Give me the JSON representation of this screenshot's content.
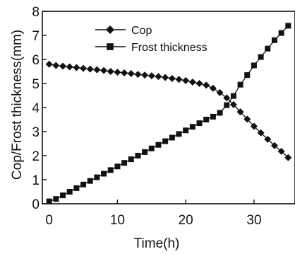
{
  "chart_data": {
    "type": "line",
    "title": "",
    "xlabel": "Time(h)",
    "ylabel": "Cop/Frost thickness(mm)",
    "xlim": [
      -1,
      36
    ],
    "ylim": [
      0,
      8
    ],
    "xticks": [
      0,
      10,
      20,
      30
    ],
    "xtick_labels": [
      "0",
      "10",
      "20",
      "30"
    ],
    "yticks": [
      0,
      1,
      2,
      3,
      4,
      5,
      6,
      7,
      8
    ],
    "ytick_labels": [
      "0",
      "1",
      "2",
      "3",
      "4",
      "5",
      "6",
      "7",
      "8"
    ],
    "grid": false,
    "legend_position": "top-center",
    "series": [
      {
        "name": "Cop",
        "marker": "diamond",
        "x": [
          0,
          1,
          2,
          3,
          4,
          5,
          6,
          7,
          8,
          9,
          10,
          11,
          12,
          13,
          14,
          15,
          16,
          17,
          18,
          19,
          20,
          21,
          22,
          23,
          24,
          25,
          26,
          27,
          28,
          29,
          30,
          31,
          32,
          33,
          34,
          35
        ],
        "y": [
          5.8,
          5.75,
          5.72,
          5.69,
          5.66,
          5.63,
          5.6,
          5.57,
          5.54,
          5.5,
          5.47,
          5.44,
          5.41,
          5.38,
          5.35,
          5.32,
          5.29,
          5.25,
          5.21,
          5.17,
          5.12,
          5.06,
          5.0,
          4.93,
          4.8,
          4.62,
          4.4,
          4.12,
          3.82,
          3.52,
          3.22,
          2.95,
          2.68,
          2.42,
          2.18,
          1.92
        ]
      },
      {
        "name": "Frost thickness",
        "marker": "square",
        "x": [
          0,
          1,
          2,
          3,
          4,
          5,
          6,
          7,
          8,
          9,
          10,
          11,
          12,
          13,
          14,
          15,
          16,
          17,
          18,
          19,
          20,
          21,
          22,
          23,
          24,
          25,
          26,
          27,
          28,
          29,
          30,
          31,
          32,
          33,
          34,
          35
        ],
        "y": [
          0.1,
          0.2,
          0.35,
          0.5,
          0.65,
          0.8,
          0.95,
          1.1,
          1.25,
          1.4,
          1.55,
          1.7,
          1.85,
          2.0,
          2.15,
          2.3,
          2.45,
          2.6,
          2.75,
          2.9,
          3.05,
          3.2,
          3.35,
          3.5,
          3.62,
          3.78,
          4.1,
          4.48,
          4.95,
          5.35,
          5.75,
          6.1,
          6.45,
          6.8,
          7.1,
          7.4
        ]
      }
    ]
  }
}
